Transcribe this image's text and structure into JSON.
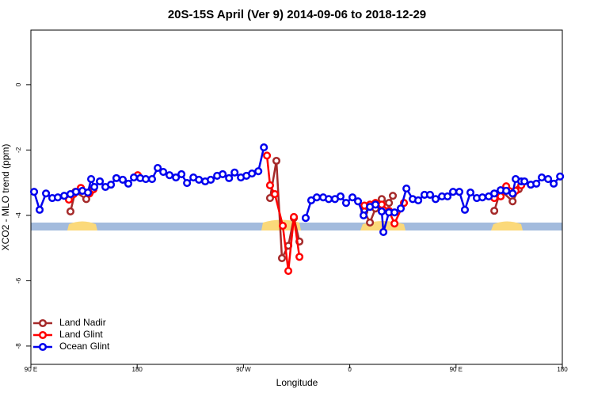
{
  "chart_data": {
    "type": "line",
    "title": "20S-15S April (Ver 9)   2014-09-06 to 2018-12-29",
    "xlabel": "Longitude",
    "ylabel": "XCO2 - MLO trend (ppm)",
    "xlim": [
      90,
      540
    ],
    "xticks": [
      {
        "value": 90,
        "label": "90 E"
      },
      180,
      {
        "value": 270,
        "label": "90 W"
      },
      {
        "value": 360,
        "label": "0"
      },
      {
        "value": 450,
        "label": "90 E"
      },
      {
        "value": 540,
        "label": "180"
      }
    ],
    "ylim": [
      -8.56,
      1.67
    ],
    "yticks": [
      -8,
      -6,
      -4,
      -2,
      0
    ],
    "legend": "bottom-left",
    "series": [
      {
        "name": "Land Nadir",
        "color": "#a52a2a",
        "x": [
          123.5,
          127.6,
          136.9,
          140.3,
          null,
          292.5,
          297.9,
          302.6,
          308,
          312.7,
          317.4,
          null,
          372.4,
          377.1,
          381.8,
          387.1,
          393.2,
          396.5,
          null,
          482.4,
          487.8,
          497.9,
          503.1
        ],
        "values": [
          -3.88,
          -3.28,
          -3.5,
          -3.28,
          null,
          -3.47,
          -2.33,
          -5.31,
          -4.93,
          -4.08,
          -4.8,
          null,
          -3.88,
          -4.22,
          -3.79,
          -3.5,
          -3.62,
          -3.4,
          null,
          -3.86,
          -3.23,
          -3.57,
          -3.2
        ]
      },
      {
        "name": "Land Glint",
        "color": "#ff0000",
        "x": [
          122.2,
          126.2,
          132.3,
          139.6,
          143,
          null,
          180.5,
          null,
          289.9,
          292.5,
          296.6,
          303.3,
          308,
          312.7,
          317.4,
          null,
          372.4,
          377.1,
          381.8,
          387.1,
          393.2,
          397.9,
          405.9,
          null,
          482.4,
          487.8,
          492.5,
          500.5,
          505.2
        ],
        "values": [
          -3.52,
          -3.35,
          -3.16,
          -3.33,
          -3.2,
          null,
          -2.77,
          null,
          -2.17,
          -3.08,
          -3.35,
          -4.32,
          -5.7,
          -4.05,
          -5.27,
          null,
          -3.7,
          -3.67,
          -3.62,
          -3.67,
          -3.86,
          -4.25,
          -3.62,
          null,
          -3.47,
          -3.42,
          -3.11,
          -3.25,
          -3.08
        ]
      },
      {
        "name": "Ocean Glint",
        "color": "#0000ee",
        "x": [
          92.7,
          97.4,
          102.8,
          108.1,
          112.8,
          118.2,
          123.5,
          128.2,
          133.6,
          138.3,
          141,
          143.7,
          148.4,
          153.1,
          157.8,
          162.4,
          167.8,
          172.5,
          177.2,
          182.6,
          187.3,
          192.6,
          197.4,
          202.1,
          207.4,
          212.8,
          217.5,
          222.2,
          227.6,
          232.3,
          237.6,
          242.3,
          247.7,
          252.4,
          257.8,
          262.5,
          267.8,
          272.5,
          277.2,
          282.6,
          287.3,
          null,
          322.7,
          327.4,
          332.1,
          337.5,
          342.2,
          347.5,
          352.2,
          356.9,
          362.3,
          367,
          371.7,
          377.1,
          381.8,
          387.1,
          388.5,
          393.2,
          397.9,
          403.2,
          408,
          413.3,
          418,
          423.3,
          428,
          432.7,
          438.1,
          442.8,
          447.5,
          452.8,
          457.5,
          462.2,
          467.6,
          472.3,
          477.7,
          482.4,
          487.8,
          492.5,
          497.9,
          500.5,
          505.2,
          507.9,
          513.3,
          518,
          522.6,
          528,
          532.7,
          538.1
        ],
        "values": [
          -3.28,
          -3.83,
          -3.33,
          -3.47,
          -3.45,
          -3.4,
          -3.35,
          -3.28,
          -3.25,
          -3.3,
          -2.89,
          -3.13,
          -2.96,
          -3.13,
          -3.06,
          -2.86,
          -2.91,
          -3.03,
          -2.84,
          -2.86,
          -2.89,
          -2.89,
          -2.55,
          -2.67,
          -2.77,
          -2.84,
          -2.74,
          -3.01,
          -2.84,
          -2.91,
          -2.96,
          -2.91,
          -2.79,
          -2.74,
          -2.86,
          -2.69,
          -2.84,
          -2.79,
          -2.72,
          -2.65,
          -1.92,
          null,
          -4.08,
          -3.54,
          -3.45,
          -3.45,
          -3.5,
          -3.5,
          -3.42,
          -3.62,
          -3.45,
          -3.57,
          -4.0,
          -3.74,
          -3.67,
          -3.88,
          -4.51,
          -3.91,
          -3.91,
          -3.79,
          -3.18,
          -3.5,
          -3.54,
          -3.37,
          -3.37,
          -3.5,
          -3.42,
          -3.42,
          -3.28,
          -3.28,
          -3.83,
          -3.3,
          -3.47,
          -3.45,
          -3.42,
          -3.33,
          -3.23,
          -3.25,
          -3.33,
          -2.89,
          -2.96,
          -2.96,
          -3.06,
          -3.03,
          -2.84,
          -2.89,
          -3.03,
          -2.81
        ]
      }
    ]
  }
}
